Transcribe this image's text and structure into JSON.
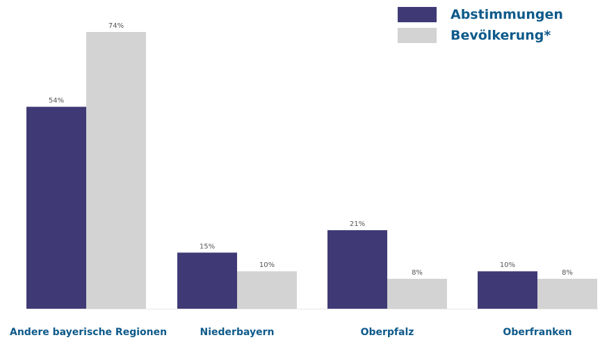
{
  "colors": {
    "abstimmungen": "#3f3a76",
    "bevoelkerung": "#d3d3d3",
    "label": "#0e5a8a"
  },
  "legend": {
    "abstimmungen": "Abstimmungen",
    "bevoelkerung": "Bevölkerung*"
  },
  "chart_data": {
    "type": "bar",
    "categories": [
      "Andere bayerische Regionen",
      "Niederbayern",
      "Oberpfalz",
      "Oberfranken"
    ],
    "series": [
      {
        "name": "Abstimmungen",
        "values": [
          54,
          15,
          21,
          10
        ]
      },
      {
        "name": "Bevölkerung*",
        "values": [
          74,
          10,
          8,
          8
        ]
      }
    ],
    "value_labels": [
      [
        "54%",
        "15%",
        "21%",
        "10%"
      ],
      [
        "74%",
        "10%",
        "8%",
        "8%"
      ]
    ],
    "unit": "%",
    "ylim": [
      0,
      74
    ],
    "grid": false,
    "legend_position": "top-right"
  }
}
